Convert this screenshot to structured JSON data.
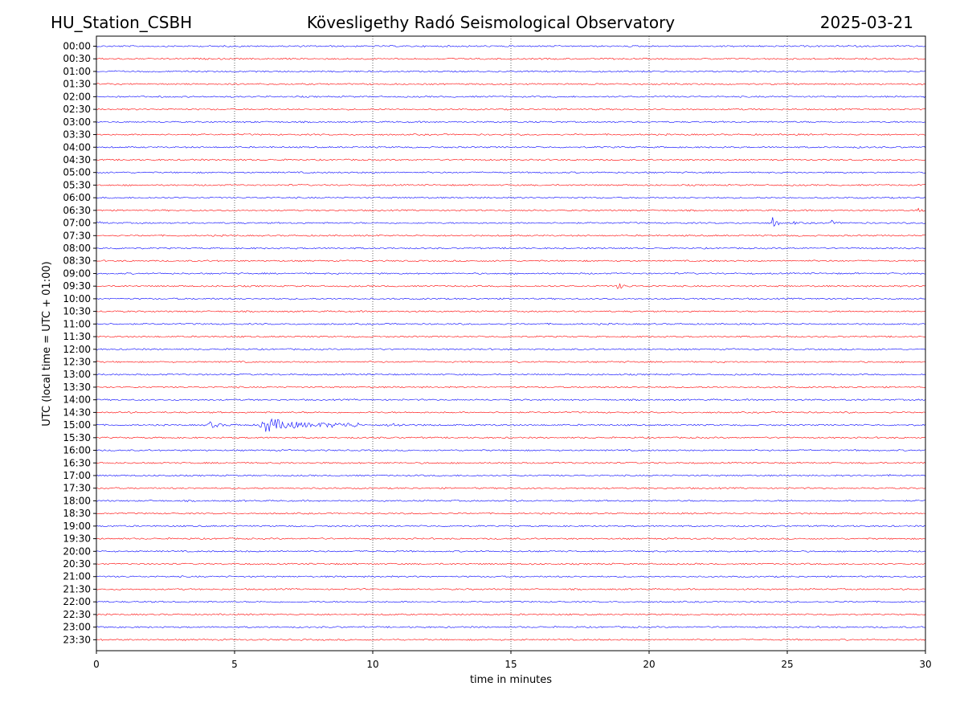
{
  "header": {
    "station": "HU_Station_CSBH",
    "observatory": "Kövesligethy Radó Seismological Observatory",
    "date": "2025-03-21"
  },
  "chart_data": {
    "type": "line",
    "title": "Kövesligethy Radó Seismological Observatory",
    "xlabel": "time in minutes",
    "ylabel": "UTC (local time = UTC + 01:00)",
    "xlim": [
      0,
      30
    ],
    "x_ticks": [
      0,
      5,
      10,
      15,
      20,
      25,
      30
    ],
    "vertical_gridlines_at": [
      5,
      10,
      15,
      20,
      25
    ],
    "grid": "vertical dotted",
    "series_colors": [
      "#0000ff",
      "#ff0000"
    ],
    "rows": [
      "00:00",
      "00:30",
      "01:00",
      "01:30",
      "02:00",
      "02:30",
      "03:00",
      "03:30",
      "04:00",
      "04:30",
      "05:00",
      "05:30",
      "06:00",
      "06:30",
      "07:00",
      "07:30",
      "08:00",
      "08:30",
      "09:00",
      "09:30",
      "10:00",
      "10:30",
      "11:00",
      "11:30",
      "12:00",
      "12:30",
      "13:00",
      "13:30",
      "14:00",
      "14:30",
      "15:00",
      "15:30",
      "16:00",
      "16:30",
      "17:00",
      "17:30",
      "18:00",
      "18:30",
      "19:00",
      "19:30",
      "20:00",
      "20:30",
      "21:00",
      "21:30",
      "22:00",
      "22:30",
      "23:00",
      "23:30"
    ],
    "events": [
      {
        "row": "00:00",
        "start_min": 27.1,
        "end_min": 27.6,
        "amplitude": 0.3
      },
      {
        "row": "00:00",
        "start_min": 29.3,
        "end_min": 29.7,
        "amplitude": 0.1
      },
      {
        "row": "04:00",
        "start_min": 27.5,
        "end_min": 28.6,
        "amplitude": 0.15
      },
      {
        "row": "06:30",
        "start_min": 29.7,
        "end_min": 30.0,
        "amplitude": 0.45
      },
      {
        "row": "07:00",
        "start_min": 0.0,
        "end_min": 1.4,
        "amplitude": 0.2
      },
      {
        "row": "07:00",
        "start_min": 24.45,
        "end_min": 24.7,
        "amplitude": 0.9
      },
      {
        "row": "07:00",
        "start_min": 25.2,
        "end_min": 25.5,
        "amplitude": 0.35
      },
      {
        "row": "07:00",
        "start_min": 26.6,
        "end_min": 26.9,
        "amplitude": 0.35
      },
      {
        "row": "07:00",
        "start_min": 27.0,
        "end_min": 27.3,
        "amplitude": 0.3
      },
      {
        "row": "09:30",
        "start_min": 18.8,
        "end_min": 19.6,
        "amplitude": 0.45
      },
      {
        "row": "14:00",
        "start_min": 27.45,
        "end_min": 27.6,
        "amplitude": 0.15
      },
      {
        "row": "15:00",
        "start_min": 4.0,
        "end_min": 5.4,
        "amplitude": 0.45
      },
      {
        "row": "15:00",
        "start_min": 5.9,
        "end_min": 9.5,
        "amplitude": 1.0
      },
      {
        "row": "15:00",
        "start_min": 10.5,
        "end_min": 12.4,
        "amplitude": 0.35
      },
      {
        "row": "15:30",
        "start_min": 2.5,
        "end_min": 3.1,
        "amplitude": 0.15
      },
      {
        "row": "17:00",
        "start_min": 28.5,
        "end_min": 30.0,
        "amplitude": 0.2
      }
    ]
  }
}
